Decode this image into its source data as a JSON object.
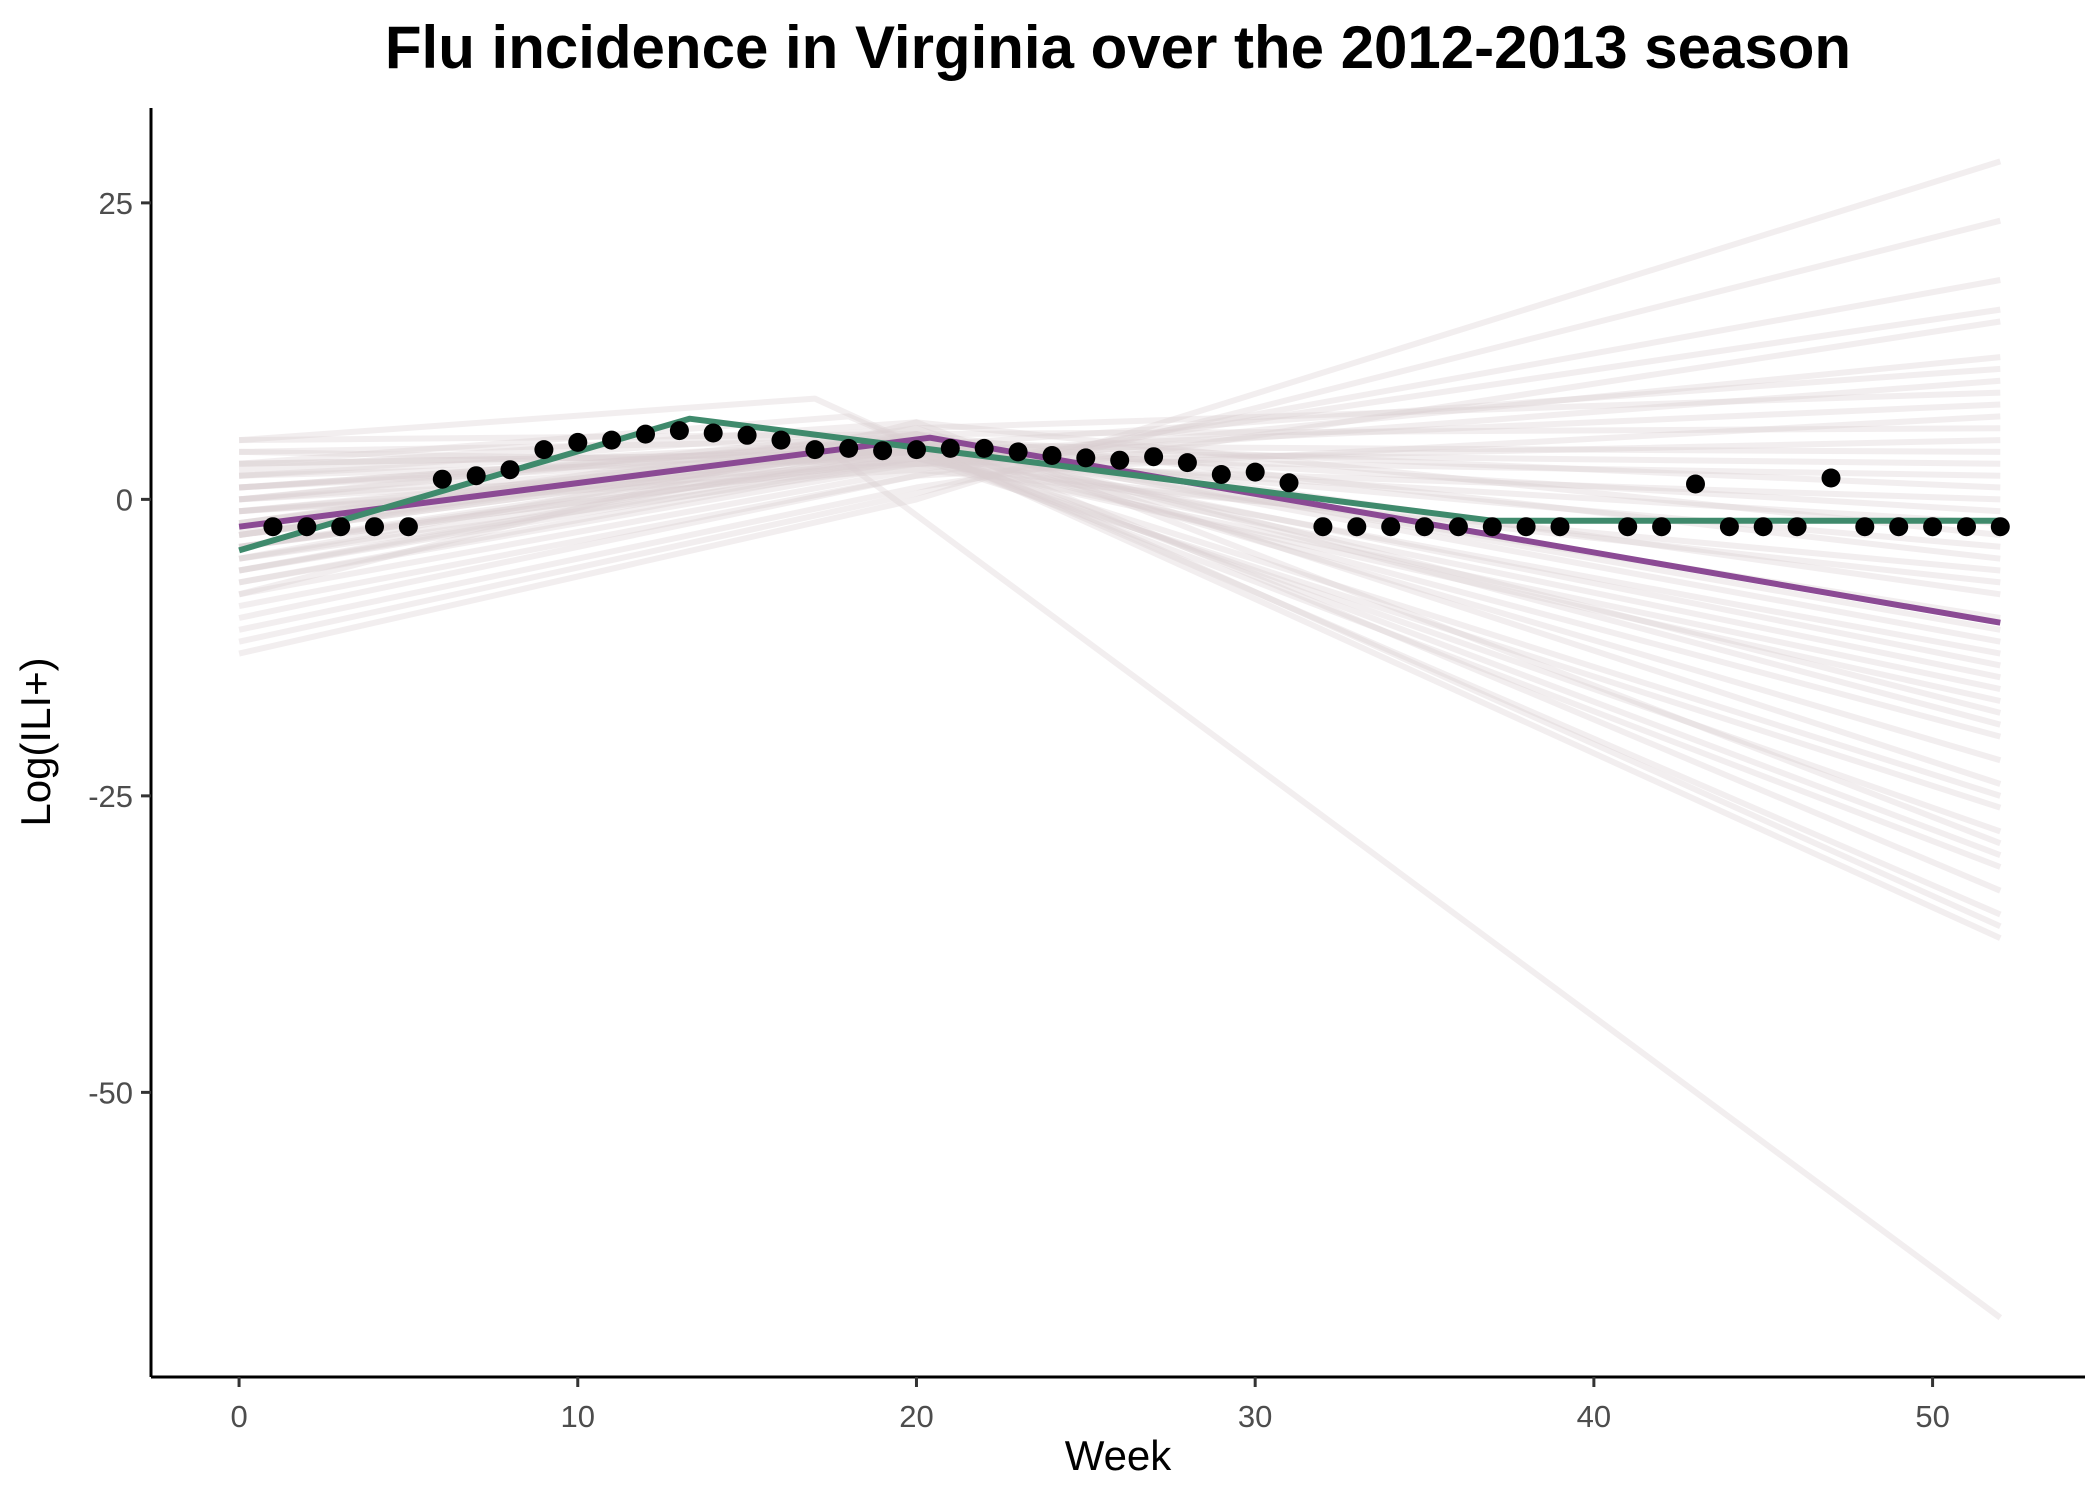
{
  "chart_data": {
    "type": "line",
    "title": "Flu incidence in Virginia over the 2012-2013 season",
    "xlabel": "Week",
    "ylabel": "Log(ILI+)",
    "xlim": [
      -2.6,
      54.5
    ],
    "ylim": [
      -74,
      33
    ],
    "x_ticks": [
      0,
      10,
      20,
      30,
      40,
      50
    ],
    "y_ticks": [
      25,
      0,
      -25,
      -50
    ],
    "grid": false,
    "legend": "none",
    "colors": {
      "observed": "#000000",
      "fit_purple": "#8b4a94",
      "fit_green": "#3f8a6c",
      "samples": "#d9cfd1"
    },
    "series": [
      {
        "type": "scatter",
        "x": [
          1,
          2,
          3,
          4,
          5,
          6,
          7,
          8,
          9,
          10,
          11,
          12,
          13,
          14,
          15,
          16,
          17,
          18,
          19,
          20,
          21,
          22,
          23,
          24,
          25,
          26,
          27,
          28,
          29,
          30,
          31,
          32,
          33,
          34,
          35,
          36,
          37,
          38,
          39,
          41,
          42,
          43,
          44,
          45,
          46,
          47,
          48,
          49,
          50,
          51,
          52
        ],
        "values": [
          -2.3,
          -2.3,
          -2.3,
          -2.3,
          -2.3,
          1.7,
          2.0,
          2.5,
          4.2,
          4.8,
          5.0,
          5.5,
          5.8,
          5.6,
          5.4,
          5.0,
          4.2,
          4.3,
          4.1,
          4.2,
          4.3,
          4.3,
          4.0,
          3.7,
          3.5,
          3.3,
          3.6,
          3.1,
          2.1,
          2.3,
          1.4,
          -2.3,
          -2.3,
          -2.3,
          -2.3,
          -2.3,
          -2.3,
          -2.3,
          -2.3,
          -2.3,
          -2.3,
          1.3,
          -2.3,
          -2.3,
          -2.3,
          1.8,
          -2.3,
          -2.3,
          -2.3,
          -2.3,
          -2.3
        ]
      },
      {
        "type": "line",
        "x": [
          0,
          20.4,
          52
        ],
        "values": [
          -2.3,
          5.2,
          -10.4
        ]
      },
      {
        "type": "line",
        "x": [
          0,
          13.3,
          37,
          52
        ],
        "values": [
          -4.3,
          6.8,
          -1.8,
          -1.8
        ]
      }
    ],
    "samples": [
      {
        "x": [
          0,
          20,
          52
        ],
        "values": [
          -3.0,
          5.5,
          -33.0
        ]
      },
      {
        "x": [
          0,
          20,
          52
        ],
        "values": [
          -1.0,
          4.5,
          -30.0
        ]
      },
      {
        "x": [
          0,
          20,
          52
        ],
        "values": [
          1.0,
          5.0,
          -36.0
        ]
      },
      {
        "x": [
          0,
          20,
          52
        ],
        "values": [
          -5.0,
          4.0,
          -28.0
        ]
      },
      {
        "x": [
          0,
          20,
          52
        ],
        "values": [
          -7.0,
          3.5,
          -26.0
        ]
      },
      {
        "x": [
          0,
          20,
          52
        ],
        "values": [
          -2.0,
          6.0,
          -24.0
        ]
      },
      {
        "x": [
          0,
          20,
          52
        ],
        "values": [
          2.0,
          5.0,
          -22.0
        ]
      },
      {
        "x": [
          0,
          20,
          52
        ],
        "values": [
          -4.0,
          4.5,
          -20.0
        ]
      },
      {
        "x": [
          0,
          20,
          52
        ],
        "values": [
          0.0,
          5.5,
          -18.0
        ]
      },
      {
        "x": [
          0,
          20,
          52
        ],
        "values": [
          -6.0,
          3.5,
          -16.0
        ]
      },
      {
        "x": [
          0,
          20,
          52
        ],
        "values": [
          3.0,
          4.0,
          -15.0
        ]
      },
      {
        "x": [
          0,
          20,
          52
        ],
        "values": [
          -1.0,
          4.0,
          -13.0
        ]
      },
      {
        "x": [
          0,
          20,
          52
        ],
        "values": [
          -3.0,
          5.0,
          -12.0
        ]
      },
      {
        "x": [
          0,
          20,
          52
        ],
        "values": [
          1.0,
          4.5,
          -10.0
        ]
      },
      {
        "x": [
          0,
          20,
          52
        ],
        "values": [
          -2.0,
          5.0,
          -8.0
        ]
      },
      {
        "x": [
          0,
          20,
          52
        ],
        "values": [
          4.0,
          3.0,
          -7.0
        ]
      },
      {
        "x": [
          0,
          20,
          52
        ],
        "values": [
          -5.0,
          5.5,
          -5.0
        ]
      },
      {
        "x": [
          0,
          20,
          52
        ],
        "values": [
          0.0,
          4.0,
          -4.0
        ]
      },
      {
        "x": [
          0,
          20,
          52
        ],
        "values": [
          -8.0,
          6.5,
          -3.0
        ]
      },
      {
        "x": [
          0,
          20,
          52
        ],
        "values": [
          2.0,
          3.5,
          -2.0
        ]
      },
      {
        "x": [
          0,
          20,
          52
        ],
        "values": [
          -3.0,
          4.5,
          -1.0
        ]
      },
      {
        "x": [
          0,
          20,
          52
        ],
        "values": [
          -1.0,
          3.0,
          0.0
        ]
      },
      {
        "x": [
          0,
          20,
          52
        ],
        "values": [
          1.0,
          5.0,
          1.0
        ]
      },
      {
        "x": [
          0,
          20,
          52
        ],
        "values": [
          -4.0,
          3.5,
          2.0
        ]
      },
      {
        "x": [
          0,
          20,
          52
        ],
        "values": [
          3.0,
          4.0,
          3.0
        ]
      },
      {
        "x": [
          0,
          20,
          52
        ],
        "values": [
          -6.0,
          4.5,
          4.0
        ]
      },
      {
        "x": [
          0,
          20,
          52
        ],
        "values": [
          0.0,
          3.0,
          5.0
        ]
      },
      {
        "x": [
          0,
          20,
          52
        ],
        "values": [
          -2.0,
          5.5,
          6.0
        ]
      },
      {
        "x": [
          0,
          20,
          52
        ],
        "values": [
          -9.0,
          2.0,
          7.0
        ]
      },
      {
        "x": [
          0,
          20,
          52
        ],
        "values": [
          -4.0,
          4.0,
          8.0
        ]
      },
      {
        "x": [
          0,
          20,
          52
        ],
        "values": [
          2.0,
          6.0,
          9.0
        ]
      },
      {
        "x": [
          0,
          20,
          52
        ],
        "values": [
          -7.0,
          3.0,
          10.0
        ]
      },
      {
        "x": [
          0,
          20,
          52
        ],
        "values": [
          -3.0,
          4.5,
          11.0
        ]
      },
      {
        "x": [
          0,
          20,
          52
        ],
        "values": [
          -11.0,
          1.0,
          15.0
        ]
      },
      {
        "x": [
          0,
          20,
          52
        ],
        "values": [
          -8.0,
          2.5,
          16.0
        ]
      },
      {
        "x": [
          0,
          20,
          52
        ],
        "values": [
          -10.0,
          2.0,
          18.5
        ]
      },
      {
        "x": [
          0,
          20,
          52
        ],
        "values": [
          -12.0,
          0.5,
          23.5
        ]
      },
      {
        "x": [
          0,
          20,
          52
        ],
        "values": [
          -13.0,
          0.0,
          28.5
        ]
      },
      {
        "x": [
          0,
          17,
          52
        ],
        "values": [
          5.0,
          8.5,
          -37.0
        ]
      },
      {
        "x": [
          0,
          18,
          52
        ],
        "values": [
          3.0,
          7.0,
          -35.0
        ]
      },
      {
        "x": [
          0,
          20,
          52
        ],
        "values": [
          -6.0,
          4.0,
          -31.0
        ]
      },
      {
        "x": [
          0,
          17,
          52
        ],
        "values": [
          0.0,
          5.0,
          -69.0
        ]
      },
      {
        "x": [
          0,
          20,
          52
        ],
        "values": [
          -4.0,
          3.5,
          -17.0
        ]
      },
      {
        "x": [
          0,
          20,
          52
        ],
        "values": [
          4.0,
          5.0,
          -11.0
        ]
      },
      {
        "x": [
          0,
          20,
          52
        ],
        "values": [
          -1.0,
          2.5,
          -6.0
        ]
      },
      {
        "x": [
          0,
          20,
          52
        ],
        "values": [
          5.0,
          5.5,
          -19.0
        ]
      },
      {
        "x": [
          0,
          20,
          52
        ],
        "values": [
          -5.0,
          3.0,
          12.0
        ]
      },
      {
        "x": [
          0,
          20,
          52
        ],
        "values": [
          1.0,
          4.0,
          -25.0
        ]
      },
      {
        "x": [
          0,
          20,
          52
        ],
        "values": [
          -2.5,
          4.5,
          -14.0
        ]
      },
      {
        "x": [
          0,
          20,
          52
        ],
        "values": [
          2.5,
          6.5,
          -29.0
        ]
      }
    ]
  }
}
